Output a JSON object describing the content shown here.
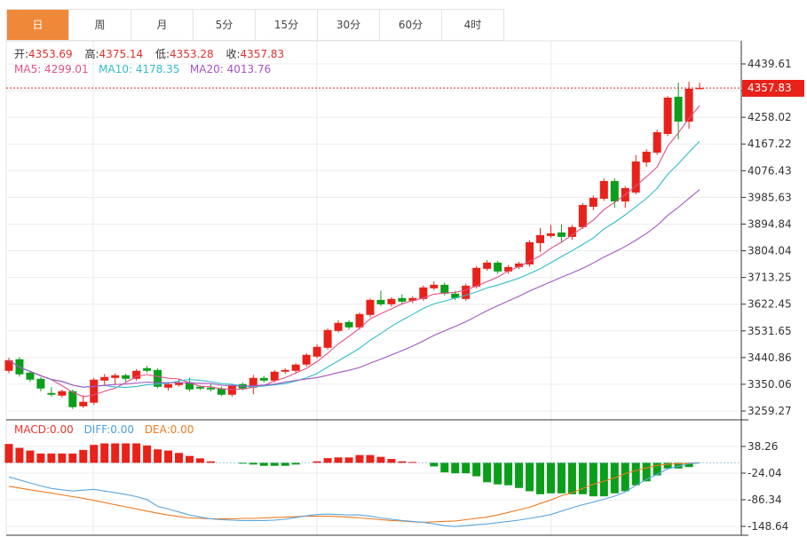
{
  "tabs": [
    {
      "label": "日",
      "active": true
    },
    {
      "label": "周"
    },
    {
      "label": "月"
    },
    {
      "label": "5分"
    },
    {
      "label": "15分"
    },
    {
      "label": "30分"
    },
    {
      "label": "60分"
    },
    {
      "label": "4时"
    }
  ],
  "ohlc_info": {
    "open_label": "开:",
    "open": "4353.69",
    "high_label": "高:",
    "high": "4375.14",
    "low_label": "低:",
    "low": "4353.28",
    "close_label": "收:",
    "close": "4357.83"
  },
  "ma_info": {
    "ma5": "MA5: 4299.01",
    "ma10": "MA10: 4178.35",
    "ma20": "MA20: 4013.76"
  },
  "macd_info": {
    "macd": "MACD:0.00",
    "diff": "DIFF:0.00",
    "dea": "DEA:0.00"
  },
  "current_price": "4357.83",
  "colors": {
    "up": "#e8221a",
    "down": "#0a9e1a",
    "ma5": "#e0508a",
    "ma10": "#33bccc",
    "ma20": "#a554c4",
    "diff": "#5aa6e0",
    "dea": "#f07a20",
    "active_tab": "#f0883a"
  },
  "chart_data": [
    {
      "type": "candlestick",
      "y_ticks": [
        "4439.61",
        "4258.02",
        "4167.22",
        "4076.43",
        "3985.63",
        "3894.84",
        "3804.04",
        "3713.25",
        "3622.45",
        "3531.65",
        "3440.86",
        "3350.06",
        "3259.27"
      ],
      "ylim": [
        3259.27,
        4439.61
      ],
      "ma_periods": [
        5,
        10,
        20
      ],
      "candles_ohlc": [
        [
          3395.8,
          3440,
          3388,
          3432.0
        ],
        [
          3435.1,
          3442,
          3376,
          3383.8
        ],
        [
          3389.8,
          3396,
          3358,
          3365.7
        ],
        [
          3368.7,
          3374,
          3326,
          3335.5
        ],
        [
          3320.4,
          3340,
          3308,
          3314.4
        ],
        [
          3311.4,
          3332,
          3305,
          3326.5
        ],
        [
          3326.5,
          3332,
          3266,
          3272.2
        ],
        [
          3275.2,
          3312,
          3270,
          3290.3
        ],
        [
          3287.3,
          3372,
          3280,
          3365.7
        ],
        [
          3362.6,
          3385,
          3345,
          3374.7
        ],
        [
          3371.7,
          3388,
          3348,
          3380.7
        ],
        [
          3380.7,
          3386,
          3358,
          3368.7
        ],
        [
          3368.7,
          3402,
          3362,
          3395.8
        ],
        [
          3404.9,
          3412,
          3390,
          3395.8
        ],
        [
          3398.8,
          3404,
          3336,
          3341.5
        ],
        [
          3338.5,
          3356,
          3328,
          3350.6
        ],
        [
          3347.5,
          3366,
          3342,
          3356.6
        ],
        [
          3356.6,
          3372,
          3326,
          3332.5
        ],
        [
          3341.5,
          3346,
          3330,
          3335.5
        ],
        [
          3338.5,
          3350,
          3326,
          3332.5
        ],
        [
          3335.5,
          3342,
          3310,
          3314.4
        ],
        [
          3314.4,
          3352,
          3308,
          3347.5
        ],
        [
          3350.6,
          3356,
          3330,
          3335.5
        ],
        [
          3338.5,
          3382,
          3316,
          3371.7
        ],
        [
          3371.7,
          3378,
          3356,
          3362.6
        ],
        [
          3362.6,
          3398,
          3356,
          3392.8
        ],
        [
          3392.8,
          3404,
          3386,
          3398.8
        ],
        [
          3395.8,
          3422,
          3390,
          3417.0
        ],
        [
          3417.0,
          3456,
          3410,
          3450.1
        ],
        [
          3444.1,
          3486,
          3438,
          3477.2
        ],
        [
          3474.2,
          3540,
          3468,
          3534.6
        ],
        [
          3531.5,
          3568,
          3526,
          3558.7
        ],
        [
          3561.7,
          3568,
          3536,
          3543.6
        ],
        [
          3543.6,
          3594,
          3536,
          3588.9
        ],
        [
          3585.9,
          3642,
          3578,
          3637.1
        ],
        [
          3637.1,
          3668,
          3616,
          3622.1
        ],
        [
          3622.1,
          3646,
          3614,
          3640.2
        ],
        [
          3643.2,
          3656,
          3620,
          3631.1
        ],
        [
          3634.1,
          3650,
          3626,
          3643.2
        ],
        [
          3640.2,
          3686,
          3634,
          3679.4
        ],
        [
          3676.4,
          3700,
          3670,
          3688.4
        ],
        [
          3688.4,
          3696,
          3652,
          3658.3
        ],
        [
          3658.3,
          3668,
          3636,
          3643.2
        ],
        [
          3640.2,
          3692,
          3634,
          3685.4
        ],
        [
          3682.4,
          3752,
          3676,
          3745.8
        ],
        [
          3742.7,
          3772,
          3736,
          3763.8
        ],
        [
          3763.8,
          3770,
          3726,
          3733.7
        ],
        [
          3733.7,
          3756,
          3726,
          3748.8
        ],
        [
          3748.8,
          3766,
          3742,
          3760.8
        ],
        [
          3757.8,
          3840,
          3750,
          3833.2
        ],
        [
          3830.2,
          3882,
          3800,
          3857.4
        ],
        [
          3854.3,
          3892,
          3848,
          3863.4
        ],
        [
          3866.4,
          3894,
          3834,
          3851.3
        ],
        [
          3851.3,
          3892,
          3842,
          3884.5
        ],
        [
          3884.5,
          3966,
          3878,
          3959.9
        ],
        [
          3953.9,
          3992,
          3942,
          3984.1
        ],
        [
          3981.1,
          4050,
          3974,
          4041.4
        ],
        [
          4041.4,
          4050,
          3950,
          3971.9
        ],
        [
          3971.9,
          4024,
          3950,
          4017.3
        ],
        [
          4002.2,
          4130,
          3996,
          4107.8
        ],
        [
          4104.7,
          4150,
          4090,
          4141.0
        ],
        [
          4137.9,
          4216,
          4130,
          4207.3
        ],
        [
          4201.3,
          4330,
          4194,
          4325.0
        ],
        [
          4328.0,
          4376,
          4183,
          4243.5
        ],
        [
          4243.5,
          4379,
          4219,
          4355.1
        ],
        [
          4353.69,
          4375.14,
          4353.28,
          4357.83
        ]
      ]
    },
    {
      "type": "macd",
      "y_ticks": [
        "38.26",
        "-24.04",
        "-86.34",
        "-148.64"
      ],
      "ylim": [
        -148.64,
        38.26
      ],
      "histogram": [
        44.1,
        35,
        28.7,
        21.7,
        21.7,
        21.7,
        21.7,
        30.1,
        42,
        45.5,
        45.5,
        45.5,
        45.5,
        40.6,
        31.5,
        28.7,
        23.1,
        16.1,
        10.5,
        3.5,
        0,
        0,
        -2,
        -4,
        -7,
        -7,
        -7,
        -4,
        0,
        3.5,
        11,
        12.6,
        12.6,
        18.2,
        18.2,
        14,
        9.1,
        3.5,
        2,
        0,
        -8.4,
        -22.4,
        -24.5,
        -24.5,
        -31.5,
        -45.5,
        -50.4,
        -52.5,
        -58.8,
        -66.5,
        -73.5,
        -71.4,
        -71.4,
        -73.5,
        -73.5,
        -78.4,
        -78.4,
        -71.4,
        -66.5,
        -52.5,
        -43.4,
        -29.4,
        -13.3,
        -13.3,
        -10,
        0
      ],
      "diff": [
        -33,
        -40,
        -47,
        -54,
        -60,
        -63,
        -66,
        -64,
        -62,
        -66,
        -70,
        -74,
        -79,
        -86,
        -102,
        -108,
        -115,
        -122,
        -127,
        -131,
        -133,
        -134,
        -135,
        -135,
        -135,
        -134,
        -132,
        -128,
        -124,
        -121,
        -120,
        -121,
        -122,
        -122,
        -125,
        -129,
        -132,
        -135,
        -137,
        -139,
        -143,
        -147,
        -149,
        -147,
        -145,
        -143,
        -140,
        -137,
        -134,
        -130,
        -126,
        -121,
        -113,
        -105,
        -98,
        -92,
        -85,
        -78,
        -68,
        -53,
        -39,
        -27,
        -14,
        -8,
        -2,
        0
      ],
      "dea": [
        -55,
        -59,
        -63,
        -67,
        -71,
        -75,
        -79,
        -83,
        -88,
        -93,
        -98,
        -103,
        -108,
        -113,
        -118,
        -122,
        -126,
        -129,
        -130,
        -131,
        -131,
        -131,
        -130,
        -130,
        -129,
        -128,
        -127,
        -126,
        -125,
        -125,
        -125,
        -126,
        -127,
        -129,
        -131,
        -133,
        -135,
        -136,
        -138,
        -139,
        -138,
        -137,
        -136,
        -133,
        -130,
        -127,
        -122,
        -116,
        -110,
        -104,
        -95,
        -87,
        -77,
        -70,
        -60,
        -50,
        -43,
        -35,
        -25,
        -18,
        -12,
        -6,
        -3,
        -2,
        -1,
        0
      ]
    }
  ]
}
